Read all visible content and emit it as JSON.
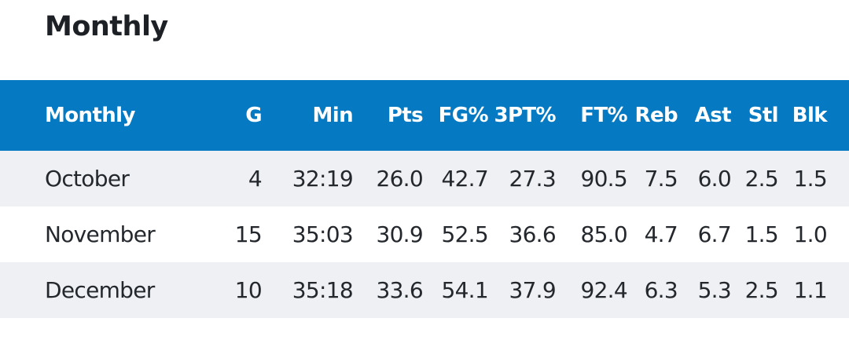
{
  "section_title": "Monthly",
  "table": {
    "headers": [
      "Monthly",
      "G",
      "Min",
      "Pts",
      "FG%",
      "3PT%",
      "FT%",
      "Reb",
      "Ast",
      "Stl",
      "Blk"
    ],
    "rows": [
      [
        "October",
        "4",
        "32:19",
        "26.0",
        "42.7",
        "27.3",
        "90.5",
        "7.5",
        "6.0",
        "2.5",
        "1.5"
      ],
      [
        "November",
        "15",
        "35:03",
        "30.9",
        "52.5",
        "36.6",
        "85.0",
        "4.7",
        "6.7",
        "1.5",
        "1.0"
      ],
      [
        "December",
        "10",
        "35:18",
        "33.6",
        "54.1",
        "37.9",
        "92.4",
        "6.3",
        "5.3",
        "2.5",
        "1.1"
      ]
    ]
  },
  "colors": {
    "header_bg": "#0579c2",
    "header_text": "#ffffff",
    "row_alt_bg": "#eef0f3"
  }
}
